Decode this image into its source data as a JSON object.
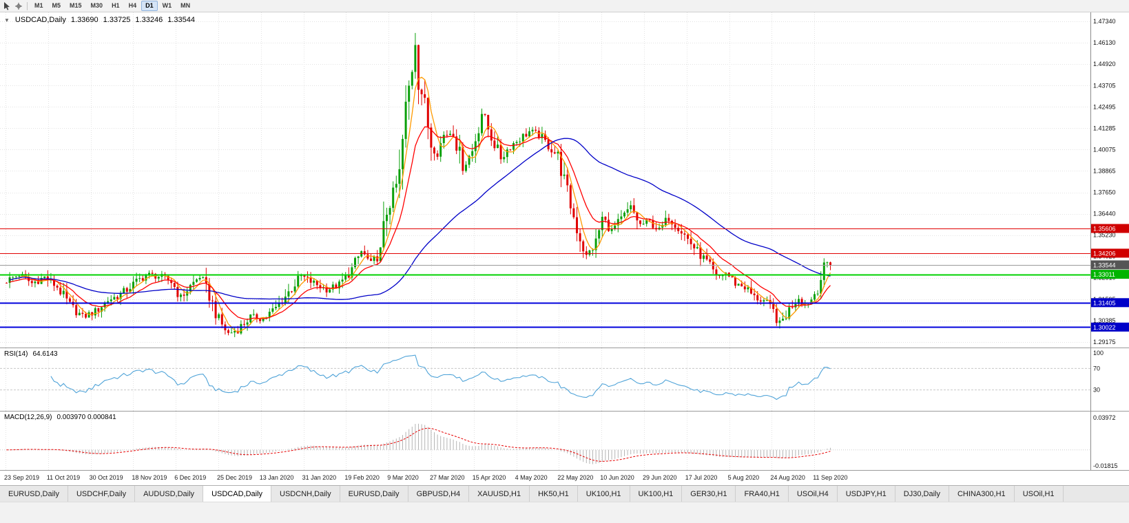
{
  "toolbar": {
    "timeframes": [
      {
        "label": "M1",
        "active": false
      },
      {
        "label": "M5",
        "active": false
      },
      {
        "label": "M15",
        "active": false
      },
      {
        "label": "M30",
        "active": false
      },
      {
        "label": "H1",
        "active": false
      },
      {
        "label": "H4",
        "active": false
      },
      {
        "label": "D1",
        "active": true
      },
      {
        "label": "W1",
        "active": false
      },
      {
        "label": "MN",
        "active": false
      }
    ]
  },
  "chart_header": {
    "symbol_period": "USDCAD,Daily",
    "open": "1.33690",
    "high": "1.33725",
    "low": "1.33246",
    "close": "1.33544"
  },
  "chart_data": {
    "type": "candlestick",
    "symbol": "USDCAD",
    "timeframe": "Daily",
    "last_ohlc": {
      "open": 1.3369,
      "high": 1.33725,
      "low": 1.33246,
      "close": 1.33544
    },
    "x_labels": [
      "23 Sep 2019",
      "11 Oct 2019",
      "30 Oct 2019",
      "18 Nov 2019",
      "6 Dec 2019",
      "25 Dec 2019",
      "13 Jan 2020",
      "31 Jan 2020",
      "19 Feb 2020",
      "9 Mar 2020",
      "27 Mar 2020",
      "15 Apr 2020",
      "4 May 2020",
      "22 May 2020",
      "10 Jun 2020",
      "29 Jun 2020",
      "17 Jul 2020",
      "5 Aug 2020",
      "24 Aug 2020",
      "11 Sep 2020"
    ],
    "y_axis": {
      "top": 1.4734,
      "bottom": 1.29175,
      "ticks": [
        "1.47340",
        "1.46130",
        "1.44920",
        "1.43705",
        "1.42495",
        "1.41285",
        "1.40075",
        "1.38865",
        "1.37650",
        "1.36440",
        "1.35230",
        "1.34020",
        "1.32810",
        "1.31595",
        "1.30385",
        "1.29175"
      ]
    },
    "price_anchors": [
      [
        0,
        1.3265
      ],
      [
        4,
        1.33
      ],
      [
        8,
        1.325
      ],
      [
        12,
        1.3285
      ],
      [
        16,
        1.323
      ],
      [
        20,
        1.3125
      ],
      [
        24,
        1.306
      ],
      [
        28,
        1.309
      ],
      [
        32,
        1.3155
      ],
      [
        36,
        1.3185
      ],
      [
        40,
        1.3245
      ],
      [
        44,
        1.33
      ],
      [
        48,
        1.329
      ],
      [
        52,
        1.326
      ],
      [
        55,
        1.317
      ],
      [
        58,
        1.3235
      ],
      [
        61,
        1.329
      ],
      [
        64,
        1.318
      ],
      [
        67,
        1.304
      ],
      [
        70,
        1.2965
      ],
      [
        73,
        1.299
      ],
      [
        77,
        1.306
      ],
      [
        81,
        1.305
      ],
      [
        85,
        1.311
      ],
      [
        89,
        1.32
      ],
      [
        93,
        1.329
      ],
      [
        97,
        1.325
      ],
      [
        101,
        1.3215
      ],
      [
        105,
        1.324
      ],
      [
        109,
        1.333
      ],
      [
        112,
        1.343
      ],
      [
        115,
        1.336
      ],
      [
        118,
        1.342
      ],
      [
        120,
        1.366
      ],
      [
        122,
        1.375
      ],
      [
        124,
        1.386
      ],
      [
        126,
        1.423
      ],
      [
        128,
        1.448
      ],
      [
        129,
        1.462
      ],
      [
        130,
        1.442
      ],
      [
        132,
        1.425
      ],
      [
        134,
        1.404
      ],
      [
        136,
        1.399
      ],
      [
        138,
        1.409
      ],
      [
        141,
        1.411
      ],
      [
        144,
        1.391
      ],
      [
        147,
        1.4
      ],
      [
        150,
        1.4215
      ],
      [
        153,
        1.408
      ],
      [
        156,
        1.396
      ],
      [
        159,
        1.403
      ],
      [
        162,
        1.407
      ],
      [
        165,
        1.411
      ],
      [
        168,
        1.409
      ],
      [
        171,
        1.403
      ],
      [
        174,
        1.397
      ],
      [
        177,
        1.376
      ],
      [
        180,
        1.356
      ],
      [
        183,
        1.34
      ],
      [
        186,
        1.348
      ],
      [
        188,
        1.362
      ],
      [
        191,
        1.355
      ],
      [
        194,
        1.361
      ],
      [
        197,
        1.368
      ],
      [
        200,
        1.358
      ],
      [
        203,
        1.36
      ],
      [
        206,
        1.355
      ],
      [
        209,
        1.362
      ],
      [
        212,
        1.357
      ],
      [
        215,
        1.35
      ],
      [
        218,
        1.343
      ],
      [
        221,
        1.337
      ],
      [
        224,
        1.328
      ],
      [
        227,
        1.331
      ],
      [
        230,
        1.325
      ],
      [
        233,
        1.323
      ],
      [
        236,
        1.317
      ],
      [
        239,
        1.315
      ],
      [
        242,
        1.309
      ],
      [
        244,
        1.302
      ],
      [
        246,
        1.307
      ],
      [
        248,
        1.313
      ],
      [
        250,
        1.317
      ],
      [
        252,
        1.313
      ],
      [
        254,
        1.316
      ],
      [
        256,
        1.323
      ],
      [
        258,
        1.333
      ],
      [
        259,
        1.3369
      ],
      [
        260,
        1.33544
      ]
    ],
    "spike": {
      "index": 129,
      "high": 1.4668
    },
    "low_spike": {
      "index": 244,
      "low": 1.2994
    },
    "clamp": {
      "high": 1.468,
      "low": 1.293
    },
    "candle_colors": {
      "up": "#0aa00a",
      "down": "#e00000"
    },
    "moving_averages": [
      {
        "period": 5,
        "method": "sma",
        "color": "#ff9a00"
      },
      {
        "period": 13,
        "method": "ema",
        "color": "#ff0000"
      },
      {
        "period": 55,
        "method": "sma",
        "color": "#0000c8"
      }
    ],
    "levels": [
      {
        "price": 1.35606,
        "label": "1.35606",
        "color": "#e00000",
        "label_bg": "#d00000",
        "width": 1
      },
      {
        "price": 1.34206,
        "label": "1.34206",
        "color": "#e00000",
        "label_bg": "#d00000",
        "width": 1
      },
      {
        "price": 1.33011,
        "label": "1.33011",
        "color": "#00d200",
        "label_bg": "#00b400",
        "width": 2
      },
      {
        "price": 1.31405,
        "label": "1.31405",
        "color": "#0000dc",
        "label_bg": "#0000c8",
        "width": 2
      },
      {
        "price": 1.30022,
        "label": "1.30022",
        "color": "#0000dc",
        "label_bg": "#0000c8",
        "width": 2
      }
    ],
    "bid_line": {
      "price": 1.33544,
      "label": "1.33544",
      "color": "#9a9a9a",
      "label_bg": "#555555"
    },
    "sub_charts": [
      {
        "type": "line",
        "name": "RSI",
        "label": "RSI(14)",
        "value": "64.6143",
        "period": 14,
        "levels": [
          100,
          70,
          30
        ],
        "range": [
          0,
          100
        ],
        "color": "#4fa3d8"
      },
      {
        "type": "histogram_line",
        "name": "MACD",
        "label": "MACD(12,26,9)",
        "values": "0.003970 0.000841",
        "params": [
          12,
          26,
          9
        ],
        "axis_labels": [
          "0.03972",
          "-0.01815"
        ],
        "range": [
          -0.01815,
          0.03972
        ],
        "histogram_color": "#b4b4b4",
        "signal_color": "#e60000"
      }
    ]
  },
  "tabs": {
    "items": [
      {
        "label": "EURUSD,Daily",
        "active": false
      },
      {
        "label": "USDCHF,Daily",
        "active": false
      },
      {
        "label": "AUDUSD,Daily",
        "active": false
      },
      {
        "label": "USDCAD,Daily",
        "active": true
      },
      {
        "label": "USDCNH,Daily",
        "active": false
      },
      {
        "label": "EURUSD,Daily",
        "active": false
      },
      {
        "label": "GBPUSD,H4",
        "active": false
      },
      {
        "label": "XAUUSD,H1",
        "active": false
      },
      {
        "label": "HK50,H1",
        "active": false
      },
      {
        "label": "UK100,H1",
        "active": false
      },
      {
        "label": "UK100,H1",
        "active": false
      },
      {
        "label": "GER30,H1",
        "active": false
      },
      {
        "label": "FRA40,H1",
        "active": false
      },
      {
        "label": "USOil,H4",
        "active": false
      },
      {
        "label": "USDJPY,H1",
        "active": false
      },
      {
        "label": "DJ30,Daily",
        "active": false
      },
      {
        "label": "CHINA300,H1",
        "active": false
      },
      {
        "label": "USOil,H1",
        "active": false
      }
    ]
  }
}
